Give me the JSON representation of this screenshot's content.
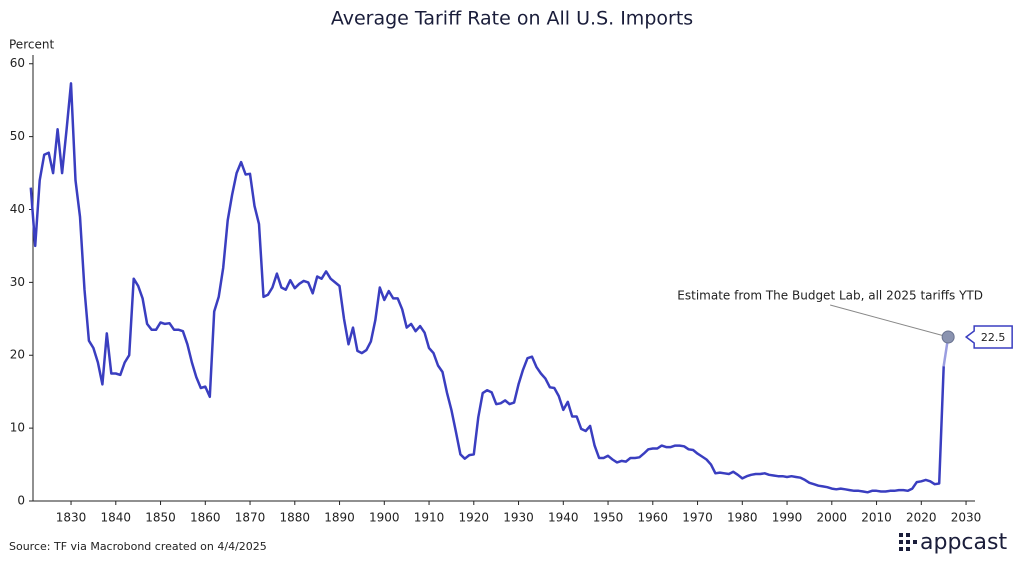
{
  "chart_data": {
    "type": "line",
    "title": "Average Tariff Rate on All U.S. Imports",
    "y_label": "Percent",
    "source": "Source: TF via Macrobond created on 4/4/2025",
    "brand": "appcast",
    "color": "#3a3ec0",
    "x": [
      1821,
      1822,
      1823,
      1824,
      1825,
      1826,
      1827,
      1828,
      1829,
      1830,
      1831,
      1832,
      1833,
      1834,
      1835,
      1836,
      1837,
      1838,
      1839,
      1840,
      1841,
      1842,
      1843,
      1844,
      1845,
      1846,
      1847,
      1848,
      1849,
      1850,
      1851,
      1852,
      1853,
      1854,
      1855,
      1856,
      1857,
      1858,
      1859,
      1860,
      1861,
      1862,
      1863,
      1864,
      1865,
      1866,
      1867,
      1868,
      1869,
      1870,
      1871,
      1872,
      1873,
      1874,
      1875,
      1876,
      1877,
      1878,
      1879,
      1880,
      1881,
      1882,
      1883,
      1884,
      1885,
      1886,
      1887,
      1888,
      1889,
      1890,
      1891,
      1892,
      1893,
      1894,
      1895,
      1896,
      1897,
      1898,
      1899,
      1900,
      1901,
      1902,
      1903,
      1904,
      1905,
      1906,
      1907,
      1908,
      1909,
      1910,
      1911,
      1912,
      1913,
      1914,
      1915,
      1916,
      1917,
      1918,
      1919,
      1920,
      1921,
      1922,
      1923,
      1924,
      1925,
      1926,
      1927,
      1928,
      1929,
      1930,
      1931,
      1932,
      1933,
      1934,
      1935,
      1936,
      1937,
      1938,
      1939,
      1940,
      1941,
      1942,
      1943,
      1944,
      1945,
      1946,
      1947,
      1948,
      1949,
      1950,
      1951,
      1952,
      1953,
      1954,
      1955,
      1956,
      1957,
      1958,
      1959,
      1960,
      1961,
      1962,
      1963,
      1964,
      1965,
      1966,
      1967,
      1968,
      1969,
      1970,
      1971,
      1972,
      1973,
      1974,
      1975,
      1976,
      1977,
      1978,
      1979,
      1980,
      1981,
      1982,
      1983,
      1984,
      1985,
      1986,
      1987,
      1988,
      1989,
      1990,
      1991,
      1992,
      1993,
      1994,
      1995,
      1996,
      1997,
      1998,
      1999,
      2000,
      2001,
      2002,
      2003,
      2004,
      2005,
      2006,
      2007,
      2008,
      2009,
      2010,
      2011,
      2012,
      2013,
      2014,
      2015,
      2016,
      2017,
      2018,
      2019,
      2020,
      2021,
      2022,
      2023,
      2024,
      2025
    ],
    "values": [
      43,
      35,
      44,
      47.5,
      47.8,
      45,
      51,
      45,
      51,
      57.3,
      44,
      39,
      29,
      22,
      21,
      19,
      16,
      23,
      17.5,
      17.5,
      17.3,
      19,
      20,
      30.5,
      29.5,
      27.8,
      24.3,
      23.5,
      23.5,
      24.5,
      24.3,
      24.4,
      23.5,
      23.5,
      23.3,
      21.5,
      19,
      17,
      15.5,
      15.7,
      14.3,
      26,
      28,
      32,
      38.5,
      42,
      45,
      46.5,
      44.8,
      44.9,
      40.5,
      38,
      28,
      28.3,
      29.3,
      31.2,
      29.3,
      29,
      30.3,
      29.2,
      29.8,
      30.2,
      30,
      28.5,
      30.8,
      30.5,
      31.5,
      30.5,
      30,
      29.5,
      25,
      21.5,
      23.8,
      20.6,
      20.3,
      20.7,
      21.9,
      24.8,
      29.3,
      27.6,
      28.8,
      27.8,
      27.8,
      26.3,
      23.8,
      24.3,
      23.3,
      24,
      23.1,
      21,
      20.3,
      18.6,
      17.7,
      14.9,
      12.5,
      9.5,
      6.4,
      5.8,
      6.3,
      6.4,
      11.5,
      14.8,
      15.2,
      14.9,
      13.3,
      13.4,
      13.8,
      13.3,
      13.5,
      16,
      18,
      19.6,
      19.8,
      18.4,
      17.5,
      16.8,
      15.6,
      15.5,
      14.4,
      12.5,
      13.6,
      11.6,
      11.6,
      9.9,
      9.6,
      10.3,
      7.6,
      5.9,
      5.9,
      6.2,
      5.7,
      5.3,
      5.5,
      5.4,
      5.9,
      5.9,
      6,
      6.5,
      7.1,
      7.2,
      7.2,
      7.6,
      7.4,
      7.4,
      7.6,
      7.6,
      7.5,
      7.1,
      7,
      6.5,
      6.1,
      5.7,
      5,
      3.8,
      3.9,
      3.8,
      3.7,
      4,
      3.6,
      3.1,
      3.4,
      3.6,
      3.7,
      3.7,
      3.8,
      3.6,
      3.5,
      3.4,
      3.4,
      3.3,
      3.4,
      3.3,
      3.2,
      2.9,
      2.5,
      2.3,
      2.1,
      2,
      1.9,
      1.7,
      1.6,
      1.7,
      1.6,
      1.5,
      1.4,
      1.4,
      1.3,
      1.2,
      1.4,
      1.4,
      1.3,
      1.3,
      1.4,
      1.4,
      1.5,
      1.5,
      1.4,
      1.7,
      2.6,
      2.7,
      2.9,
      2.7,
      2.3,
      2.4,
      18.5
    ],
    "estimate": {
      "x": 2026,
      "value": 22.5,
      "color": "#8a93b0",
      "annotation": "Estimate from The Budget Lab, all 2025 tariffs YTD"
    },
    "xlim": [
      1821.5,
      2032
    ],
    "ylim": [
      0,
      61.2
    ],
    "xticks": [
      1830,
      1840,
      1850,
      1860,
      1870,
      1880,
      1890,
      1900,
      1910,
      1920,
      1930,
      1940,
      1950,
      1960,
      1970,
      1980,
      1990,
      2000,
      2010,
      2020,
      2030
    ],
    "yticks": [
      0,
      10,
      20,
      30,
      40,
      50,
      60
    ]
  }
}
